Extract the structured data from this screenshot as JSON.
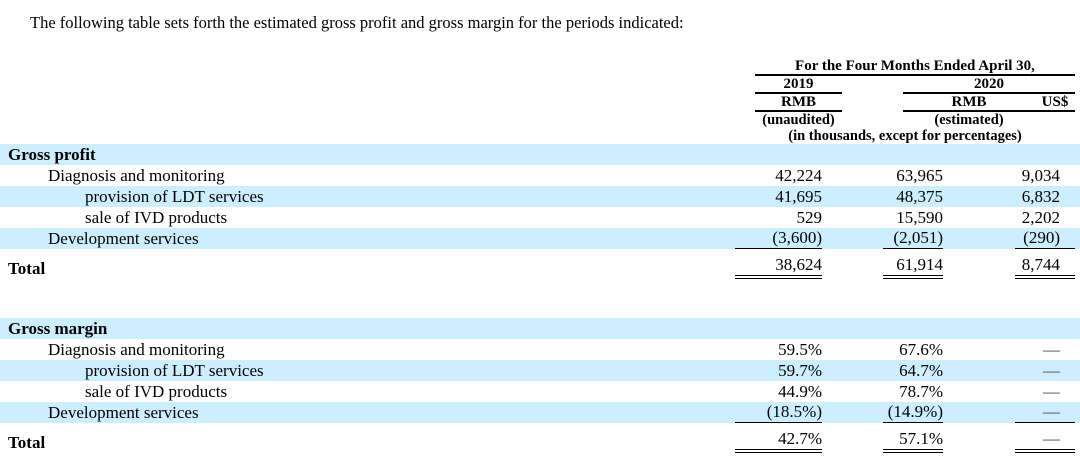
{
  "intro": "The following table sets forth the estimated gross profit and gross margin for the periods indicated:",
  "colors": {
    "stripe": "#cceeff",
    "rule": "#000000",
    "dash": "#4a4a4a"
  },
  "header": {
    "period": "For the Four Months Ended April 30,",
    "year_2019": "2019",
    "year_2020": "2020",
    "rmb_2019": "RMB",
    "rmb_2020": "RMB",
    "usd_2020": "US$",
    "note_2019": "(unaudited)",
    "note_2020": "(estimated)",
    "units_note": "(in thousands, except for percentages)"
  },
  "sections": [
    {
      "title": "Gross profit",
      "rows": [
        {
          "label": "Diagnosis and monitoring",
          "v2019": "42,224",
          "v2020rmb": "63,965",
          "v2020usd": "9,034"
        },
        {
          "label": "provision of LDT services",
          "v2019": "41,695",
          "v2020rmb": "48,375",
          "v2020usd": "6,832"
        },
        {
          "label": "sale of IVD products",
          "v2019": "529",
          "v2020rmb": "15,590",
          "v2020usd": "2,202"
        },
        {
          "label": "Development services",
          "v2019": "(3,600)",
          "v2020rmb": "(2,051)",
          "v2020usd": "(290)"
        }
      ],
      "total": {
        "label": "Total",
        "v2019": "38,624",
        "v2020rmb": "61,914",
        "v2020usd": "8,744"
      }
    },
    {
      "title": "Gross margin",
      "rows": [
        {
          "label": "Diagnosis and monitoring",
          "v2019": "59.5%",
          "v2020rmb": "67.6%",
          "v2020usd": "—"
        },
        {
          "label": "provision of LDT services",
          "v2019": "59.7%",
          "v2020rmb": "64.7%",
          "v2020usd": "—"
        },
        {
          "label": "sale of IVD products",
          "v2019": "44.9%",
          "v2020rmb": "78.7%",
          "v2020usd": "—"
        },
        {
          "label": "Development services",
          "v2019": "(18.5%)",
          "v2020rmb": "(14.9%)",
          "v2020usd": "—"
        }
      ],
      "total": {
        "label": "Total",
        "v2019": "42.7%",
        "v2020rmb": "57.1%",
        "v2020usd": "—"
      }
    }
  ]
}
